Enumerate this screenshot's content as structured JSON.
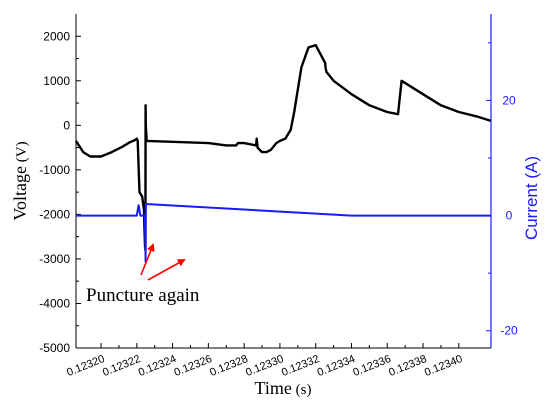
{
  "chart_data": {
    "type": "line",
    "xlabel": "Time",
    "xlabel_unit": "(s)",
    "ylabel": "Voltage",
    "ylabel_unit": "(V)",
    "y2label": "Current (A)",
    "x_ticks": [
      "0.12320",
      "0.12322",
      "0.12324",
      "0.12326",
      "0.12328",
      "0.12330",
      "0.12332",
      "0.12334",
      "0.12336",
      "0.12338",
      "0.12340"
    ],
    "xlim": [
      0.123186,
      0.123418
    ],
    "ylim": [
      -5000,
      2500
    ],
    "y_ticks": [
      2000,
      1000,
      0,
      -1000,
      -2000,
      -3000,
      -4000,
      -5000
    ],
    "y2lim": [
      -23,
      35
    ],
    "y2_ticks": [
      20,
      0,
      -20
    ],
    "grid": false,
    "legend": "none",
    "colors": {
      "voltage": "#000000",
      "current": "#1a1aff",
      "annotation": "#ff0000"
    },
    "series": [
      {
        "axis": "left",
        "x": [
          0.123186,
          0.12319,
          0.123194,
          0.1232,
          0.123206,
          0.123212,
          0.123216,
          0.123219,
          0.12322,
          0.1232205,
          0.1232215,
          0.123223,
          0.123224,
          0.1232242,
          0.1232244,
          0.1232246,
          0.1232248,
          0.1232249,
          0.123225,
          0.1232255,
          0.12326,
          0.12327,
          0.1232755,
          0.1232765,
          0.12328,
          0.1232867,
          0.123287,
          0.1232875,
          0.12329,
          0.1232925,
          0.123295,
          0.123298,
          0.1233,
          0.123303,
          0.123306,
          0.123308,
          0.12331,
          0.123312,
          0.123316,
          0.12332,
          0.1233253,
          0.1233255,
          0.123326,
          0.12333,
          0.12334,
          0.12335,
          0.12336,
          0.123366,
          0.123368,
          0.12338,
          0.12339,
          0.1234,
          0.12341,
          0.123418
        ],
        "y": [
          -350,
          -600,
          -700,
          -700,
          -600,
          -480,
          -380,
          -330,
          -300,
          -350,
          -1500,
          -1600,
          -1900,
          -2200,
          -2500,
          -2700,
          -2800,
          450,
          0,
          -350,
          -400,
          -450,
          -450,
          -400,
          -400,
          -450,
          -300,
          -500,
          -600,
          -600,
          -550,
          -400,
          -350,
          -300,
          -100,
          300,
          800,
          1300,
          1750,
          1800,
          1400,
          1300,
          1200,
          1000,
          700,
          450,
          300,
          250,
          1000,
          700,
          450,
          300,
          200,
          100
        ]
      },
      {
        "axis": "right",
        "x": [
          0.123186,
          0.12322,
          0.123221,
          0.123222,
          0.1232245,
          0.1232249,
          0.123225,
          0.12334,
          0.123418
        ],
        "y": [
          0,
          0,
          1.8,
          0,
          0,
          -8,
          2,
          0,
          0
        ]
      }
    ],
    "annotations": [
      {
        "text": "Puncture again"
      }
    ]
  }
}
